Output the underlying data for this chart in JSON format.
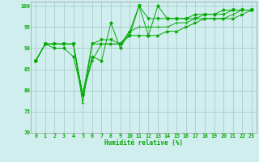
{
  "title": "",
  "xlabel": "Humidité relative (%)",
  "ylabel": "",
  "bg_color": "#d0eeee",
  "grid_color": "#aacccc",
  "line_color": "#00aa00",
  "xlim": [
    -0.5,
    23.5
  ],
  "ylim": [
    70,
    101
  ],
  "yticks": [
    70,
    75,
    80,
    85,
    90,
    95,
    100
  ],
  "xticks": [
    0,
    1,
    2,
    3,
    4,
    5,
    6,
    7,
    8,
    9,
    10,
    11,
    12,
    13,
    14,
    15,
    16,
    17,
    18,
    19,
    20,
    21,
    22,
    23
  ],
  "series": [
    [
      87,
      91,
      90,
      90,
      88,
      79,
      88,
      87,
      96,
      90,
      94,
      100,
      93,
      100,
      97,
      97,
      97,
      98,
      98,
      98,
      99,
      99,
      99,
      99
    ],
    [
      87,
      91,
      91,
      91,
      91,
      79,
      91,
      92,
      92,
      91,
      93,
      100,
      97,
      97,
      97,
      97,
      97,
      97,
      98,
      98,
      98,
      99,
      99,
      99
    ],
    [
      87,
      91,
      91,
      91,
      91,
      77,
      91,
      91,
      91,
      91,
      94,
      95,
      95,
      95,
      95,
      96,
      96,
      97,
      97,
      97,
      97,
      98,
      99,
      99
    ],
    [
      87,
      91,
      91,
      91,
      91,
      79,
      87,
      91,
      91,
      91,
      93,
      93,
      93,
      93,
      94,
      94,
      95,
      96,
      97,
      97,
      97,
      97,
      98,
      99
    ]
  ],
  "markers": [
    "D",
    "v",
    "+",
    ">"
  ],
  "markersizes": [
    2.0,
    2.5,
    3.5,
    2.5
  ],
  "linewidth": 0.7,
  "tick_fontsize": 4.8,
  "xlabel_fontsize": 5.5
}
